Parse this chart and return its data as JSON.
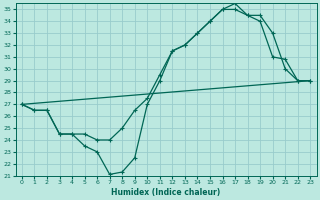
{
  "xlabel": "Humidex (Indice chaleur)",
  "bg_color": "#bce8e0",
  "grid_color": "#99cccc",
  "line_color": "#006655",
  "xlim": [
    -0.5,
    23.5
  ],
  "ylim": [
    21,
    35.5
  ],
  "xticks": [
    0,
    1,
    2,
    3,
    4,
    5,
    6,
    7,
    8,
    9,
    10,
    11,
    12,
    13,
    14,
    15,
    16,
    17,
    18,
    19,
    20,
    21,
    22,
    23
  ],
  "yticks": [
    21,
    22,
    23,
    24,
    25,
    26,
    27,
    28,
    29,
    30,
    31,
    32,
    33,
    34,
    35
  ],
  "line1_x": [
    0,
    1,
    2,
    3,
    4,
    5,
    6,
    7,
    8,
    9,
    10,
    11,
    12,
    13,
    14,
    15,
    16,
    17,
    18,
    19,
    20,
    21,
    22,
    23
  ],
  "line1_y": [
    27.0,
    26.5,
    26.5,
    24.5,
    24.5,
    23.5,
    23.0,
    21.1,
    21.3,
    22.5,
    27.0,
    29.0,
    31.5,
    32.0,
    33.0,
    34.0,
    35.0,
    35.0,
    34.5,
    34.0,
    31.0,
    30.8,
    29.0,
    29.0
  ],
  "line2_x": [
    0,
    1,
    2,
    3,
    4,
    5,
    6,
    7,
    8,
    9,
    10,
    11,
    12,
    13,
    14,
    15,
    16,
    17,
    18,
    19,
    20,
    21,
    22,
    23
  ],
  "line2_y": [
    27.0,
    26.5,
    26.5,
    24.5,
    24.5,
    24.5,
    24.0,
    24.0,
    25.0,
    26.5,
    27.5,
    29.5,
    31.5,
    32.0,
    33.0,
    34.0,
    35.0,
    35.5,
    34.5,
    34.5,
    33.0,
    30.0,
    29.0,
    29.0
  ],
  "line3_x": [
    0,
    23
  ],
  "line3_y": [
    27.0,
    29.0
  ]
}
